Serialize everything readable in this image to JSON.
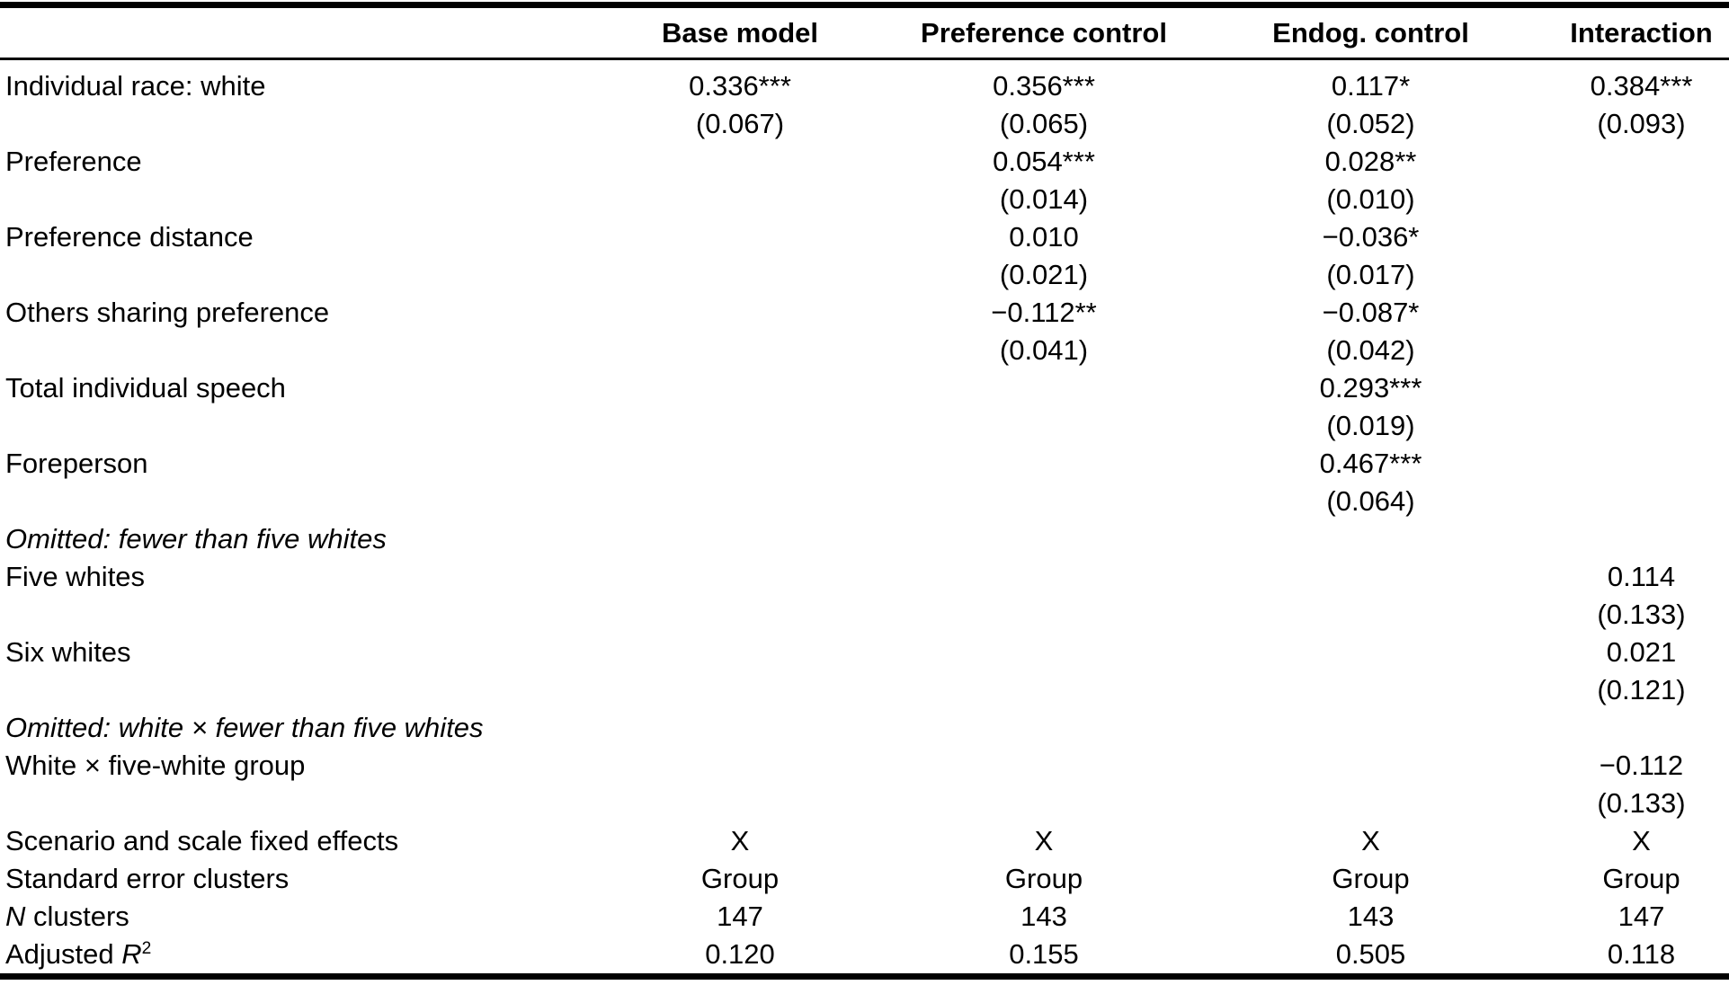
{
  "page": {
    "background_color": "#ffffff",
    "text_color": "#000000",
    "rule_color": "#000000"
  },
  "table": {
    "column_headers": [
      "",
      "Base model",
      "Preference control",
      "Endog. control",
      "Interaction"
    ],
    "rows": [
      {
        "type": "coef",
        "label": "Individual race: white",
        "estimates": [
          "0.336***",
          "0.356***",
          "0.117*",
          "0.384***"
        ],
        "std_errors": [
          "(0.067)",
          "(0.065)",
          "(0.052)",
          "(0.093)"
        ]
      },
      {
        "type": "coef",
        "label": "Preference",
        "estimates": [
          "",
          "0.054***",
          "0.028**",
          ""
        ],
        "std_errors": [
          "",
          "(0.014)",
          "(0.010)",
          ""
        ]
      },
      {
        "type": "coef",
        "label": "Preference distance",
        "estimates": [
          "",
          "0.010",
          "−0.036*",
          ""
        ],
        "std_errors": [
          "",
          "(0.021)",
          "(0.017)",
          ""
        ]
      },
      {
        "type": "coef",
        "label": "Others sharing preference",
        "estimates": [
          "",
          "−0.112**",
          "−0.087*",
          ""
        ],
        "std_errors": [
          "",
          "(0.041)",
          "(0.042)",
          ""
        ]
      },
      {
        "type": "coef",
        "label": "Total individual speech",
        "estimates": [
          "",
          "",
          "0.293***",
          ""
        ],
        "std_errors": [
          "",
          "",
          "(0.019)",
          ""
        ]
      },
      {
        "type": "coef",
        "label": "Foreperson",
        "estimates": [
          "",
          "",
          "0.467***",
          ""
        ],
        "std_errors": [
          "",
          "",
          "(0.064)",
          ""
        ]
      },
      {
        "type": "section",
        "label": "Omitted: fewer than five whites"
      },
      {
        "type": "coef",
        "label": "Five whites",
        "estimates": [
          "",
          "",
          "",
          "0.114"
        ],
        "std_errors": [
          "",
          "",
          "",
          "(0.133)"
        ]
      },
      {
        "type": "coef",
        "label": "Six whites",
        "estimates": [
          "",
          "",
          "",
          "0.021"
        ],
        "std_errors": [
          "",
          "",
          "",
          "(0.121)"
        ]
      },
      {
        "type": "section",
        "label": "Omitted: white × fewer than five whites"
      },
      {
        "type": "coef",
        "label": "White × five-white group",
        "estimates": [
          "",
          "",
          "",
          "−0.112"
        ],
        "std_errors": [
          "",
          "",
          "",
          "(0.133)"
        ]
      },
      {
        "type": "single",
        "label_rich": [
          [
            "",
            "Scenario and scale fixed effects"
          ]
        ],
        "values": [
          "X",
          "X",
          "X",
          "X"
        ]
      },
      {
        "type": "single",
        "label_rich": [
          [
            "",
            "Standard error clusters"
          ]
        ],
        "values": [
          "Group",
          "Group",
          "Group",
          "Group"
        ]
      },
      {
        "type": "single",
        "label_rich": [
          [
            "i",
            "N"
          ],
          [
            "",
            " clusters"
          ]
        ],
        "values": [
          "147",
          "143",
          "143",
          "147"
        ]
      },
      {
        "type": "single",
        "label_rich": [
          [
            "",
            "Adjusted "
          ],
          [
            "i",
            "R"
          ],
          [
            "sup",
            "2"
          ]
        ],
        "values": [
          "0.120",
          "0.155",
          "0.505",
          "0.118"
        ]
      }
    ]
  }
}
